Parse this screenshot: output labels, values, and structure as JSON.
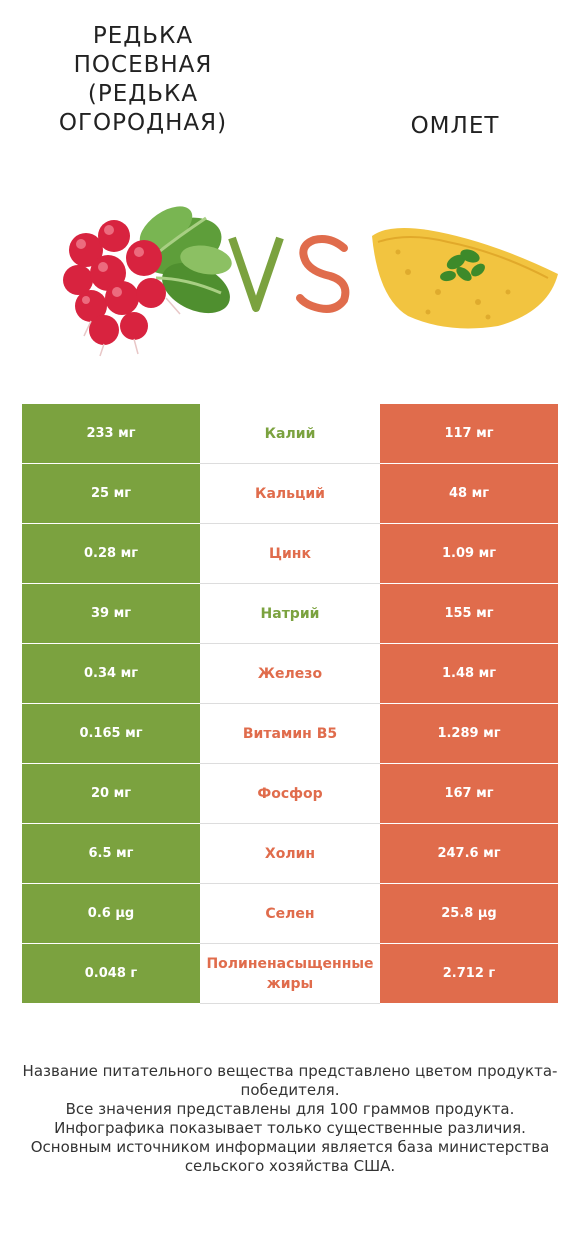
{
  "header": {
    "left_title": "Редька посевная (Редька огородная)",
    "right_title": "Омлет",
    "vs_label": "VS"
  },
  "colors": {
    "left_winner": "#7ba23f",
    "right_winner": "#e06c4c",
    "divider": "#dddddd"
  },
  "icons": {
    "left_image": "radish-bunch-image",
    "right_image": "omelette-image"
  },
  "chart_data": {
    "type": "table",
    "columns": [
      "Редька посевная (Редька огородная)",
      "",
      "Омлет"
    ],
    "rows": [
      {
        "nutrient": "Калий",
        "left": "233 мг",
        "right": "117 мг",
        "winner": "left"
      },
      {
        "nutrient": "Кальций",
        "left": "25 мг",
        "right": "48 мг",
        "winner": "right"
      },
      {
        "nutrient": "Цинк",
        "left": "0.28 мг",
        "right": "1.09 мг",
        "winner": "right"
      },
      {
        "nutrient": "Натрий",
        "left": "39 мг",
        "right": "155 мг",
        "winner": "left"
      },
      {
        "nutrient": "Железо",
        "left": "0.34 мг",
        "right": "1.48 мг",
        "winner": "right"
      },
      {
        "nutrient": "Витамин B5",
        "left": "0.165 мг",
        "right": "1.289 мг",
        "winner": "right"
      },
      {
        "nutrient": "Фосфор",
        "left": "20 мг",
        "right": "167 мг",
        "winner": "right"
      },
      {
        "nutrient": "Холин",
        "left": "6.5 мг",
        "right": "247.6 мг",
        "winner": "right"
      },
      {
        "nutrient": "Селен",
        "left": "0.6 µg",
        "right": "25.8 µg",
        "winner": "right"
      },
      {
        "nutrient": "Полиненасыщенные жиры",
        "left": "0.048 г",
        "right": "2.712 г",
        "winner": "right"
      }
    ]
  },
  "footnote": [
    "Название питательного вещества представлено цветом продукта-победителя.",
    "Все значения представлены для 100 граммов продукта.",
    "Инфографика показывает только существенные различия.",
    "Основным источником информации является база министерства сельского хозяйства США."
  ]
}
